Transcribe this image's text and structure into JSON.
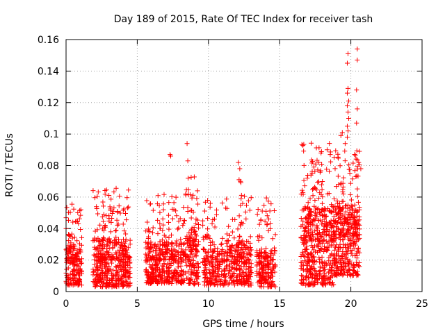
{
  "chart_data": {
    "type": "scatter",
    "title": "Day 189 of 2015, Rate Of TEC Index for receiver tash",
    "xlabel": "GPS time / hours",
    "ylabel": "ROTI / TECUs",
    "xlim": [
      0,
      25
    ],
    "ylim": [
      0,
      0.16
    ],
    "x_ticks": [
      0,
      5,
      10,
      15,
      20,
      25
    ],
    "x_tick_labels": [
      "0",
      "5",
      "10",
      "15",
      "20",
      "25"
    ],
    "y_ticks": [
      0,
      0.02,
      0.04,
      0.06,
      0.08,
      0.1,
      0.12,
      0.14,
      0.16
    ],
    "y_tick_labels": [
      "0",
      "0.02",
      "0.04",
      "0.06",
      "0.08",
      "0.1",
      "0.12",
      "0.14",
      "0.16"
    ],
    "grid": true,
    "marker": "+",
    "marker_color": "#ff0000",
    "clusters": [
      {
        "x_start": 0.0,
        "x_end": 1.1,
        "y_min": 0.004,
        "y_max": 0.056,
        "center": 0.018,
        "count": 210
      },
      {
        "x_start": 1.9,
        "x_end": 4.5,
        "y_min": 0.003,
        "y_max": 0.066,
        "center": 0.02,
        "count": 480
      },
      {
        "x_start": 5.6,
        "x_end": 8.4,
        "y_min": 0.005,
        "y_max": 0.062,
        "center": 0.02,
        "count": 450
      },
      {
        "x_start": 8.4,
        "x_end": 9.3,
        "y_min": 0.004,
        "y_max": 0.076,
        "center": 0.025,
        "count": 160
      },
      {
        "x_start": 9.6,
        "x_end": 11.3,
        "y_min": 0.004,
        "y_max": 0.06,
        "center": 0.017,
        "count": 230
      },
      {
        "x_start": 11.3,
        "x_end": 12.0,
        "y_min": 0.004,
        "y_max": 0.046,
        "center": 0.018,
        "count": 90
      },
      {
        "x_start": 12.0,
        "x_end": 13.0,
        "y_min": 0.004,
        "y_max": 0.072,
        "center": 0.02,
        "count": 170
      },
      {
        "x_start": 13.4,
        "x_end": 14.7,
        "y_min": 0.003,
        "y_max": 0.06,
        "center": 0.016,
        "count": 210
      },
      {
        "x_start": 16.5,
        "x_end": 18.8,
        "y_min": 0.004,
        "y_max": 0.095,
        "center": 0.032,
        "count": 500
      },
      {
        "x_start": 18.8,
        "x_end": 20.6,
        "y_min": 0.01,
        "y_max": 0.09,
        "center": 0.035,
        "count": 420
      }
    ],
    "outliers": [
      {
        "x": 7.3,
        "y": 0.087
      },
      {
        "x": 7.35,
        "y": 0.086
      },
      {
        "x": 8.5,
        "y": 0.094
      },
      {
        "x": 8.55,
        "y": 0.083
      },
      {
        "x": 12.1,
        "y": 0.082
      },
      {
        "x": 12.2,
        "y": 0.078
      },
      {
        "x": 12.15,
        "y": 0.071
      },
      {
        "x": 12.25,
        "y": 0.07
      },
      {
        "x": 19.3,
        "y": 0.099
      },
      {
        "x": 19.4,
        "y": 0.101
      },
      {
        "x": 19.6,
        "y": 0.094
      },
      {
        "x": 19.75,
        "y": 0.098
      },
      {
        "x": 19.8,
        "y": 0.102
      },
      {
        "x": 19.75,
        "y": 0.105
      },
      {
        "x": 19.85,
        "y": 0.11
      },
      {
        "x": 19.8,
        "y": 0.114
      },
      {
        "x": 19.75,
        "y": 0.118
      },
      {
        "x": 19.85,
        "y": 0.121
      },
      {
        "x": 19.75,
        "y": 0.126
      },
      {
        "x": 19.8,
        "y": 0.129
      },
      {
        "x": 19.75,
        "y": 0.145
      },
      {
        "x": 19.8,
        "y": 0.151
      },
      {
        "x": 20.45,
        "y": 0.154
      },
      {
        "x": 20.45,
        "y": 0.147
      },
      {
        "x": 20.4,
        "y": 0.128
      },
      {
        "x": 20.45,
        "y": 0.116
      },
      {
        "x": 20.4,
        "y": 0.107
      },
      {
        "x": 20.55,
        "y": 0.082
      },
      {
        "x": 20.7,
        "y": 0.078
      }
    ]
  }
}
